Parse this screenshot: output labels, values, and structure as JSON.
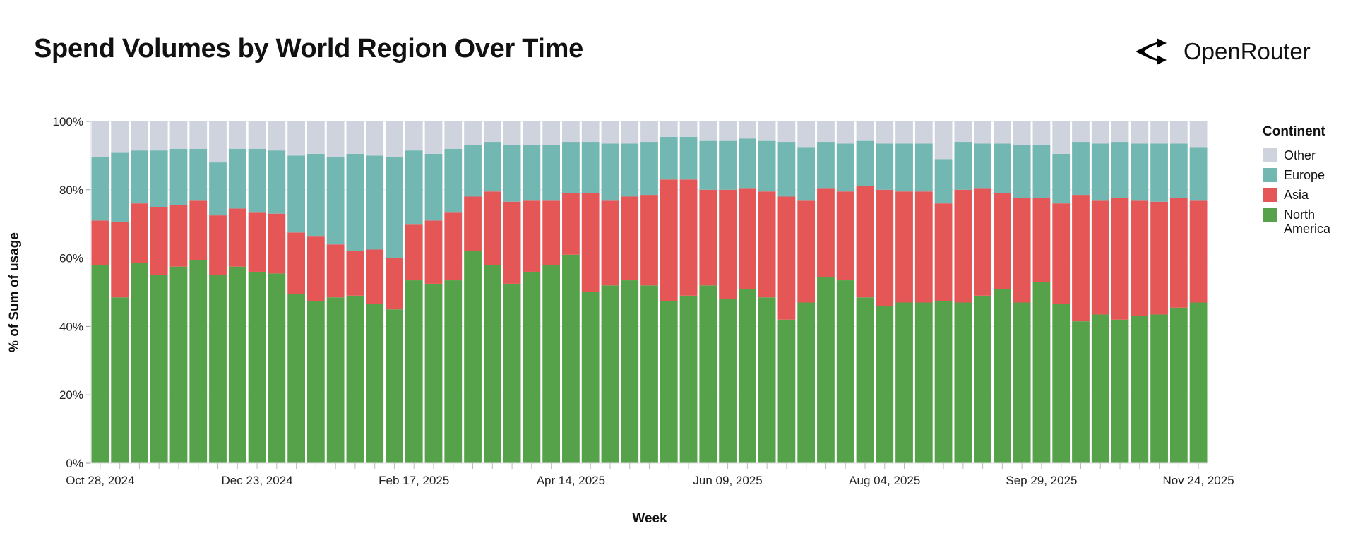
{
  "logo": {
    "text": "OpenRouter",
    "icon": "openrouter-arrows-icon"
  },
  "chart_data": {
    "type": "bar",
    "stacked": "normalized",
    "title": "Spend Volumes by World Region Over Time",
    "xlabel": "Week",
    "ylabel": "% of Sum of usage",
    "ylim": [
      0,
      100
    ],
    "yticks": [
      "0%",
      "20%",
      "40%",
      "60%",
      "80%",
      "100%"
    ],
    "xtick_labels": [
      "Oct 28, 2024",
      "Dec 23, 2024",
      "Feb 17, 2025",
      "Apr 14, 2025",
      "Jun 09, 2025",
      "Aug 04, 2025",
      "Sep 29, 2025",
      "Nov 24, 2025"
    ],
    "grid": true,
    "legend": {
      "title": "Continent",
      "placement": "right"
    },
    "x": [
      "2024-10-28",
      "2024-11-04",
      "2024-11-11",
      "2024-11-18",
      "2024-11-25",
      "2024-12-02",
      "2024-12-09",
      "2024-12-16",
      "2024-12-23",
      "2024-12-30",
      "2025-01-06",
      "2025-01-13",
      "2025-01-20",
      "2025-01-27",
      "2025-02-03",
      "2025-02-10",
      "2025-02-17",
      "2025-02-24",
      "2025-03-03",
      "2025-03-10",
      "2025-03-17",
      "2025-03-24",
      "2025-03-31",
      "2025-04-07",
      "2025-04-14",
      "2025-04-21",
      "2025-04-28",
      "2025-05-05",
      "2025-05-12",
      "2025-05-19",
      "2025-05-26",
      "2025-06-02",
      "2025-06-09",
      "2025-06-16",
      "2025-06-23",
      "2025-06-30",
      "2025-07-07",
      "2025-07-14",
      "2025-07-21",
      "2025-07-28",
      "2025-08-04",
      "2025-08-11",
      "2025-08-18",
      "2025-08-25",
      "2025-09-01",
      "2025-09-08",
      "2025-09-15",
      "2025-09-22",
      "2025-09-29",
      "2025-10-06",
      "2025-10-13",
      "2025-10-20",
      "2025-10-27",
      "2025-11-03",
      "2025-11-10",
      "2025-11-17",
      "2025-11-24"
    ],
    "series": [
      {
        "name": "North America",
        "color": "#55a24a",
        "values": [
          58,
          48.5,
          58.5,
          55,
          57.5,
          59.5,
          55,
          57.5,
          56,
          55.5,
          49.5,
          47.5,
          48.5,
          49,
          46.5,
          45,
          53.5,
          52.5,
          53.5,
          62,
          58,
          52.5,
          56,
          58,
          61,
          50,
          52,
          53.5,
          52,
          47.5,
          49,
          52,
          48,
          51,
          48.5,
          42,
          47,
          54.5,
          53.5,
          48.5,
          46,
          47,
          47,
          47.5,
          47,
          49,
          51,
          47,
          53,
          46.5,
          41.5,
          43.5,
          42,
          43,
          43.5,
          45.5,
          47
        ]
      },
      {
        "name": "Asia",
        "color": "#e45756",
        "values": [
          13,
          22,
          17.5,
          20,
          18,
          17.5,
          17.5,
          17,
          17.5,
          17.5,
          18,
          19,
          15.5,
          13,
          16,
          15,
          16.5,
          18.5,
          20,
          16,
          21.5,
          24,
          21,
          19,
          18,
          29,
          25,
          24.5,
          26.5,
          35.5,
          34,
          28,
          32,
          29.5,
          31,
          36,
          30,
          26,
          26,
          32.5,
          34,
          32.5,
          32.5,
          28.5,
          33,
          31.5,
          28,
          30.5,
          24.5,
          29.5,
          37,
          33.5,
          35.5,
          34,
          33,
          32,
          30
        ]
      },
      {
        "name": "Europe",
        "color": "#72b7b2",
        "values": [
          18.5,
          20.5,
          15.5,
          16.5,
          16.5,
          15,
          15.5,
          17.5,
          18.5,
          18.5,
          22.5,
          24,
          25.5,
          28.5,
          27.5,
          29.5,
          21.5,
          19.5,
          18.5,
          15,
          14.5,
          16.5,
          16,
          16,
          15,
          15,
          16.5,
          15.5,
          15.5,
          12.5,
          12.5,
          14.5,
          14.5,
          14.5,
          15,
          16,
          15.5,
          13.5,
          14,
          13.5,
          13.5,
          14,
          14,
          13,
          14,
          13,
          14.5,
          15.5,
          15.5,
          14.5,
          15.5,
          16.5,
          16.5,
          16.5,
          17,
          16,
          15.5
        ]
      },
      {
        "name": "Other",
        "color": "#cfd3de",
        "values": [
          10.5,
          9,
          8.5,
          8.5,
          8,
          8,
          12,
          8,
          8,
          8.5,
          10,
          9.5,
          10.5,
          9.5,
          10,
          10.5,
          8.5,
          9.5,
          8,
          7,
          6,
          7,
          7,
          7,
          6,
          6,
          6.5,
          6.5,
          6,
          4.5,
          4.5,
          5.5,
          5.5,
          5,
          5.5,
          6,
          7.5,
          6,
          6.5,
          5.5,
          6.5,
          6.5,
          6.5,
          11,
          6,
          6.5,
          6.5,
          7,
          7,
          9.5,
          6,
          6.5,
          6,
          6.5,
          6.5,
          6.5,
          7.5
        ]
      }
    ],
    "legend_order": [
      "Other",
      "Europe",
      "Asia",
      "North America"
    ]
  }
}
